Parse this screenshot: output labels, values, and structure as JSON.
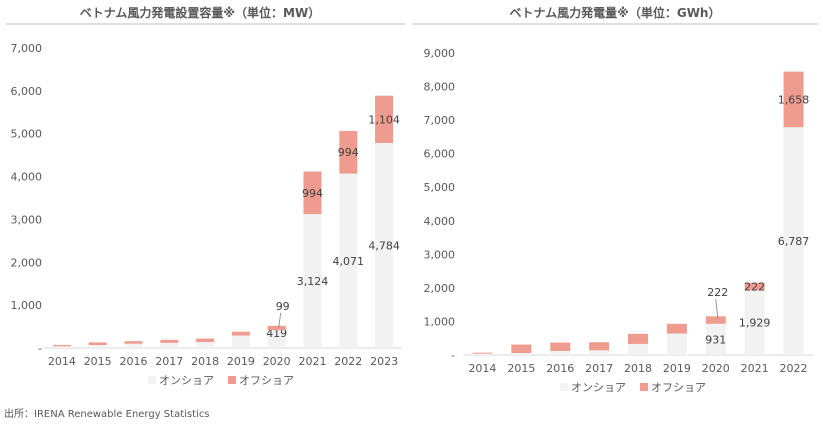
{
  "source": "出所：IRENA Renewable Energy Statistics",
  "colors": {
    "onshore": "#f2f2f2",
    "offshore": "#ef9b8f",
    "axis": "#d9d9d9",
    "text": "#595959"
  },
  "chart_data": [
    {
      "type": "bar",
      "stacked": true,
      "title": "ベトナム風力発電設置容量※（単位：MW）",
      "categories": [
        "2014",
        "2015",
        "2016",
        "2017",
        "2018",
        "2019",
        "2020",
        "2021",
        "2022",
        "2023"
      ],
      "series": [
        {
          "name": "オンショア",
          "values": [
            40,
            70,
            100,
            120,
            140,
            290,
            419,
            3124,
            4071,
            4784
          ],
          "labels": [
            "",
            "",
            "",
            "",
            "",
            "",
            "419",
            "3,124",
            "4,071",
            "4,784"
          ]
        },
        {
          "name": "オフショア",
          "values": [
            30,
            60,
            60,
            70,
            80,
            90,
            99,
            994,
            994,
            1104
          ],
          "labels": [
            "",
            "",
            "",
            "",
            "",
            "",
            "99",
            "994",
            "994",
            "1,104"
          ]
        }
      ],
      "yticks": [
        "-",
        "1,000",
        "2,000",
        "3,000",
        "4,000",
        "5,000",
        "6,000",
        "7,000"
      ],
      "ylim": [
        0,
        7000
      ],
      "grid": false,
      "legend": "bottom"
    },
    {
      "type": "bar",
      "stacked": true,
      "title": "ベトナム風力発電量※（単位：GWh）",
      "categories": [
        "2014",
        "2015",
        "2016",
        "2017",
        "2018",
        "2019",
        "2020",
        "2021",
        "2022"
      ],
      "series": [
        {
          "name": "オンショア",
          "values": [
            40,
            60,
            120,
            140,
            330,
            640,
            931,
            1929,
            6787
          ],
          "labels": [
            "",
            "",
            "",
            "",
            "",
            "",
            "931",
            "1,929",
            "6,787"
          ]
        },
        {
          "name": "オフショア",
          "values": [
            30,
            250,
            250,
            240,
            300,
            290,
            222,
            222,
            1658
          ],
          "labels": [
            "",
            "",
            "",
            "",
            "",
            "",
            "222",
            "222",
            "1,658"
          ]
        }
      ],
      "yticks": [
        "-",
        "1,000",
        "2,000",
        "3,000",
        "4,000",
        "5,000",
        "6,000",
        "7,000",
        "8,000",
        "9,000"
      ],
      "ylim": [
        0,
        9000
      ],
      "grid": false,
      "legend": "bottom"
    }
  ]
}
